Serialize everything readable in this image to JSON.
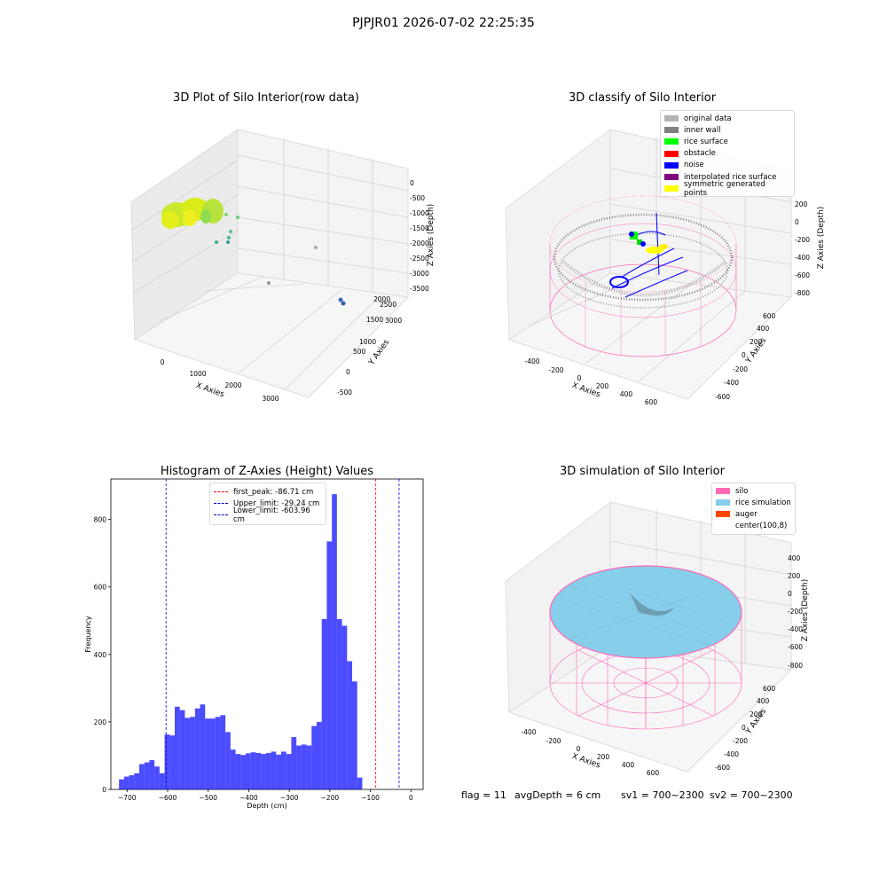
{
  "suptitle": "PJPJR01 2026-07-02 22:25:35",
  "panels": {
    "raw": {
      "title": "3D Plot of Silo Interior(row data)",
      "xlabel": "X Axies",
      "ylabel": "Y Axies",
      "zlabel": "Z Axies (Depth)",
      "xticks": [
        "0",
        "1000",
        "2000",
        "3000"
      ],
      "yticks": [
        "-500",
        "0",
        "500",
        "1000",
        "1500",
        "2000",
        "2500",
        "3000"
      ],
      "zticks": [
        "0",
        "-500",
        "-1000",
        "-1500",
        "-2000",
        "-2500",
        "-3000",
        "-3500"
      ]
    },
    "classify": {
      "title": "3D classify of Silo Interior",
      "xlabel": "X Axies",
      "ylabel": "Y Axies",
      "zlabel": "Z Axies (Depth)",
      "xticks": [
        "-400",
        "-200",
        "0",
        "200",
        "400",
        "600"
      ],
      "yticks": [
        "-600",
        "-400",
        "-200",
        "0",
        "200",
        "400",
        "600"
      ],
      "zticks": [
        "200",
        "0",
        "-200",
        "-400",
        "-600",
        "-800"
      ],
      "legend": [
        {
          "label": "original data",
          "color": "#b3b3b3"
        },
        {
          "label": "inner wall",
          "color": "#808080"
        },
        {
          "label": "rice surface",
          "color": "#00ff00"
        },
        {
          "label": "obstacle",
          "color": "#ff0000"
        },
        {
          "label": "noise",
          "color": "#0000ff"
        },
        {
          "label": "interpolated rice surface",
          "color": "#800080"
        },
        {
          "label": "symmetric generated points",
          "color": "#ffff00"
        }
      ]
    },
    "simulation": {
      "title": "3D simulation of Silo Interior",
      "xlabel": "X Axies",
      "ylabel": "Y Axies",
      "zlabel": "Z Axies (Depth)",
      "xticks": [
        "-400",
        "-200",
        "0",
        "200",
        "400",
        "600"
      ],
      "yticks": [
        "-600",
        "-400",
        "-200",
        "0",
        "200",
        "400",
        "600"
      ],
      "zticks": [
        "400",
        "200",
        "0",
        "-200",
        "-400",
        "-600",
        "-800"
      ],
      "legend": [
        {
          "label": "silo",
          "color": "#ff69b4"
        },
        {
          "label": "rice simulation",
          "color": "#87ceeb"
        },
        {
          "label": "auger",
          "color": "#ff4500"
        },
        {
          "label": "center(100,8)",
          "color": "#ffffff"
        }
      ]
    }
  },
  "footer": {
    "flag": "flag = 11",
    "avg": "avgDepth = 6 cm",
    "sv1": "sv1 = 700~2300",
    "sv2": "sv2 = 700~2300"
  },
  "chart_data": {
    "type": "bar",
    "title": "Histogram of Z-Axies (Height) Values",
    "xlabel": "Depth (cm)",
    "ylabel": "Frequency",
    "xlim": [
      -740,
      30
    ],
    "ylim": [
      0,
      920
    ],
    "xticks": [
      -700,
      -600,
      -500,
      -400,
      -300,
      -200,
      -100,
      0
    ],
    "yticks": [
      0,
      200,
      400,
      600,
      800
    ],
    "bin_width": 12.5,
    "bin_start": -720,
    "values": [
      30,
      38,
      42,
      48,
      75,
      80,
      87,
      68,
      48,
      163,
      160,
      245,
      235,
      212,
      215,
      240,
      252,
      210,
      210,
      215,
      220,
      170,
      118,
      105,
      102,
      107,
      110,
      108,
      105,
      108,
      112,
      103,
      112,
      105,
      155,
      130,
      133,
      130,
      188,
      200,
      505,
      735,
      875,
      505,
      485,
      380,
      320,
      35
    ],
    "bar_color": "#0000ff",
    "lines": [
      {
        "label": "first_peak: -86.71 cm",
        "x": -86.71,
        "color": "#ff0000"
      },
      {
        "label": "Upper_limit: -29.24 cm",
        "x": -29.24,
        "color": "#0000cd"
      },
      {
        "label": "Lower_limit: -603.96 cm",
        "x": -603.96,
        "color": "#0000cd"
      }
    ]
  }
}
